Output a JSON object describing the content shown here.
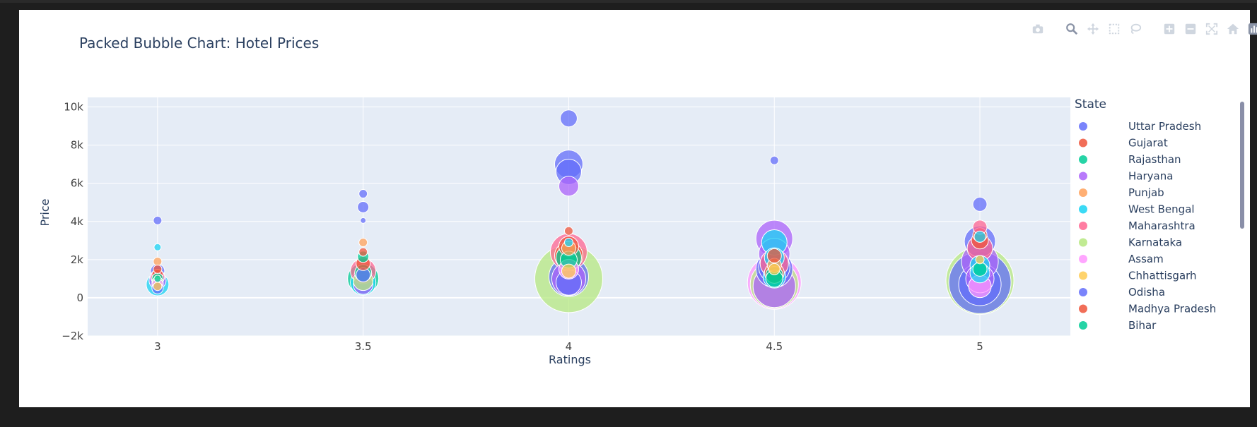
{
  "modebar": {
    "icons": [
      "camera-icon",
      "zoom-icon",
      "pan-icon",
      "box-select-icon",
      "lasso-icon",
      "zoom-in-icon",
      "zoom-out-icon",
      "autoscale-icon",
      "reset-axes-icon",
      "plotly-logo-icon"
    ]
  },
  "colors": {
    "plot_bg": "#e5ecf6",
    "grid": "#ffffff",
    "text": "#2a3f5f",
    "tick_text": "#444444"
  },
  "chart_data": {
    "type": "scatter",
    "title": "Packed Bubble Chart: Hotel Prices",
    "xlabel": "Ratings",
    "ylabel": "Price",
    "xlim": [
      2.83,
      5.22
    ],
    "ylim": [
      -2000,
      10500
    ],
    "x_ticks": [
      3,
      3.5,
      4,
      4.5,
      5
    ],
    "x_tick_labels": [
      "3",
      "3.5",
      "4",
      "4.5",
      "5"
    ],
    "y_ticks": [
      -2000,
      0,
      2000,
      4000,
      6000,
      8000,
      10000
    ],
    "y_tick_labels": [
      "−2k",
      "0",
      "2k",
      "4k",
      "6k",
      "8k",
      "10k"
    ],
    "grid": true,
    "legend_title": "State",
    "legend_position": "right",
    "series": [
      {
        "name": "Uttar Pradesh",
        "color": "#636efa",
        "points": [
          [
            3,
            4050,
            6
          ],
          [
            3,
            1400,
            10
          ],
          [
            3.5,
            5450,
            6
          ],
          [
            3.5,
            4750,
            8
          ],
          [
            3.5,
            4050,
            4
          ],
          [
            4,
            9400,
            12
          ],
          [
            4,
            7000,
            20
          ],
          [
            4,
            6600,
            18
          ],
          [
            4,
            1100,
            28
          ],
          [
            4.5,
            7200,
            6
          ],
          [
            4.5,
            1500,
            26
          ],
          [
            5,
            4900,
            10
          ],
          [
            5,
            2950,
            22
          ],
          [
            5,
            800,
            44
          ]
        ]
      },
      {
        "name": "Gujarat",
        "color": "#ef553b",
        "points": [
          [
            3,
            1200,
            8
          ],
          [
            3.5,
            2400,
            6
          ],
          [
            4,
            3500,
            6
          ],
          [
            4,
            2200,
            20
          ],
          [
            4.5,
            1300,
            14
          ],
          [
            5,
            3300,
            10
          ]
        ]
      },
      {
        "name": "Rajasthan",
        "color": "#00cc96",
        "points": [
          [
            3,
            1000,
            8
          ],
          [
            3.5,
            1000,
            22
          ],
          [
            3.5,
            2150,
            8
          ],
          [
            4,
            2100,
            18
          ],
          [
            4.5,
            1200,
            12
          ]
        ]
      },
      {
        "name": "Haryana",
        "color": "#ab63fa",
        "points": [
          [
            3,
            900,
            12
          ],
          [
            3.5,
            700,
            14
          ],
          [
            4,
            5850,
            14
          ],
          [
            4,
            1000,
            24
          ],
          [
            4.5,
            3100,
            26
          ],
          [
            4.5,
            2300,
            22
          ],
          [
            4.5,
            600,
            30
          ],
          [
            5,
            1900,
            26
          ],
          [
            5,
            1000,
            20
          ]
        ]
      },
      {
        "name": "Punjab",
        "color": "#ffa15a",
        "points": [
          [
            3,
            1900,
            6
          ],
          [
            3.5,
            2900,
            6
          ],
          [
            4,
            2600,
            10
          ],
          [
            4.5,
            1700,
            10
          ]
        ]
      },
      {
        "name": "West Bengal",
        "color": "#19d3f3",
        "points": [
          [
            3,
            2650,
            5
          ],
          [
            3,
            700,
            16
          ],
          [
            3.5,
            800,
            18
          ],
          [
            4,
            2900,
            6
          ],
          [
            4.5,
            2900,
            18
          ],
          [
            4.5,
            2100,
            14
          ],
          [
            4.5,
            1100,
            16
          ],
          [
            5,
            3200,
            8
          ],
          [
            5,
            1700,
            14
          ],
          [
            5,
            1300,
            14
          ]
        ]
      },
      {
        "name": "Maharashtra",
        "color": "#ff6692",
        "points": [
          [
            3,
            1100,
            10
          ],
          [
            3.5,
            1400,
            18
          ],
          [
            4,
            2400,
            26
          ],
          [
            4.5,
            1800,
            20
          ],
          [
            5,
            3700,
            10
          ],
          [
            5,
            2600,
            18
          ]
        ]
      },
      {
        "name": "Karnataka",
        "color": "#b6e880",
        "points": [
          [
            3,
            800,
            8
          ],
          [
            3.5,
            900,
            14
          ],
          [
            4,
            1000,
            48
          ],
          [
            4.5,
            700,
            34
          ],
          [
            5,
            900,
            48
          ]
        ]
      },
      {
        "name": "Assam",
        "color": "#ff97ff",
        "points": [
          [
            3,
            700,
            8
          ],
          [
            4,
            1500,
            14
          ],
          [
            4.5,
            800,
            38
          ],
          [
            5,
            600,
            16
          ]
        ]
      },
      {
        "name": "Chhattisgarh",
        "color": "#fecb52",
        "points": [
          [
            3,
            600,
            6
          ],
          [
            4,
            1400,
            10
          ],
          [
            4.5,
            1500,
            8
          ],
          [
            5,
            2000,
            6
          ]
        ]
      },
      {
        "name": "Odisha",
        "color": "#636efa",
        "points": [
          [
            3,
            500,
            8
          ],
          [
            3.5,
            1200,
            10
          ],
          [
            4,
            800,
            18
          ],
          [
            4.5,
            1600,
            22
          ],
          [
            5,
            700,
            30
          ]
        ]
      },
      {
        "name": "Madhya Pradesh",
        "color": "#ef553b",
        "points": [
          [
            3,
            1500,
            6
          ],
          [
            3.5,
            1800,
            10
          ],
          [
            4,
            2700,
            14
          ],
          [
            4.5,
            2200,
            10
          ],
          [
            5,
            3000,
            12
          ]
        ]
      },
      {
        "name": "Bihar",
        "color": "#00cc96",
        "points": [
          [
            3,
            1000,
            5
          ],
          [
            3.5,
            1300,
            12
          ],
          [
            4,
            2000,
            12
          ],
          [
            4.5,
            1000,
            12
          ],
          [
            5,
            1500,
            10
          ]
        ]
      }
    ]
  }
}
